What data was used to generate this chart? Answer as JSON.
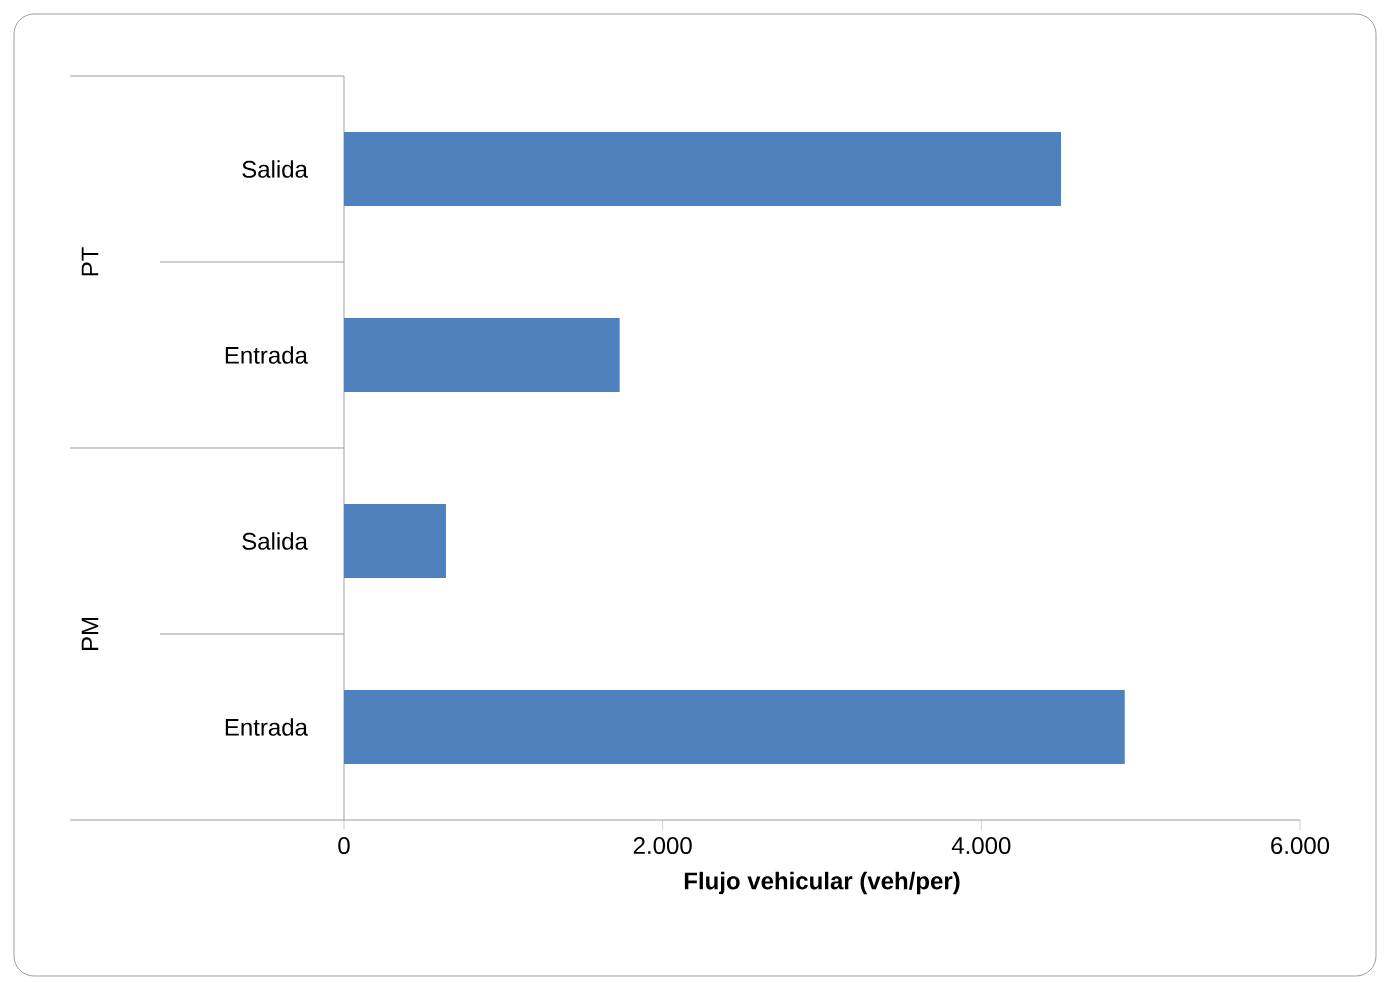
{
  "chart_data": {
    "type": "bar",
    "orientation": "horizontal",
    "categories": [
      "Salida",
      "Entrada",
      "Salida",
      "Entrada"
    ],
    "values": [
      4500,
      1730,
      640,
      4900
    ],
    "color": "#4f81bd",
    "xlabel": "Flujo vehicular (veh/per)",
    "xlim": [
      0,
      6000
    ],
    "xticks": [
      0,
      {
        "value": 2000,
        "label": "2.000"
      },
      {
        "value": 4000,
        "label": "4.000"
      },
      {
        "value": 6000,
        "label": "6.000"
      }
    ],
    "annotations": [
      "PT",
      "PM"
    ]
  }
}
